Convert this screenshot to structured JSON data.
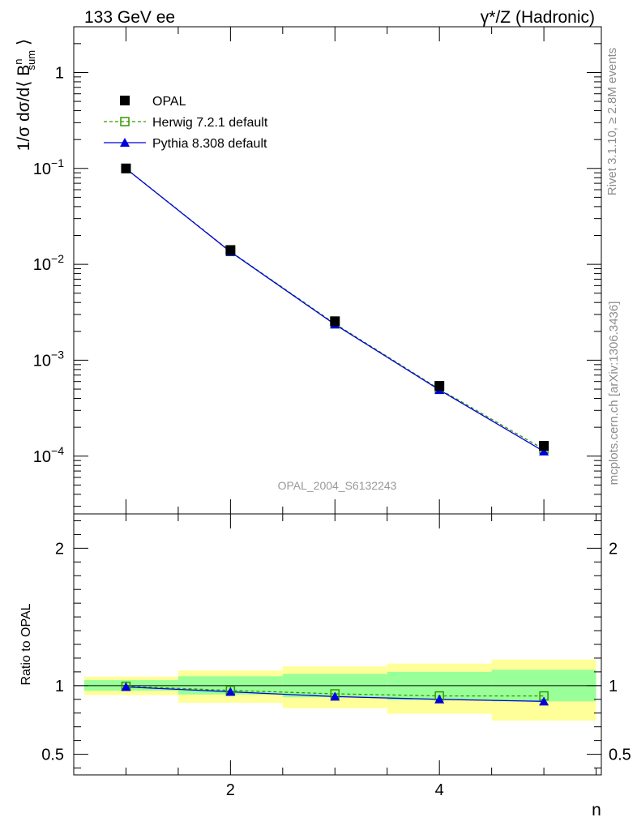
{
  "header": {
    "left_label": "133 GeV ee",
    "right_label_prefix": "γ*",
    "right_label_suffix": "/Z (Hadronic)"
  },
  "side_labels": {
    "rivet": "Rivet 3.1.10, ≥ 2.8M events",
    "mcplots": "mcplots.cern.ch [arXiv:1306.3436]"
  },
  "analysis_id": "OPAL_2004_S6132243",
  "chart_data": [
    {
      "type": "line",
      "panel": "main",
      "ylabel_main": "1/σ dσ/d⟨ B",
      "ylabel_sup": "n",
      "ylabel_sub": "sum",
      "ylabel_close": "⟩",
      "yscale": "log",
      "ylim": [
        2.5e-05,
        3
      ],
      "xlim": [
        0.5,
        5.55
      ],
      "y_tick_labels": [
        {
          "value": 1,
          "base": "1",
          "exp": ""
        },
        {
          "value": 0.1,
          "base": "10",
          "exp": "−1"
        },
        {
          "value": 0.01,
          "base": "10",
          "exp": "−2"
        },
        {
          "value": 0.001,
          "base": "10",
          "exp": "−3"
        },
        {
          "value": 0.0001,
          "base": "10",
          "exp": "−4"
        }
      ],
      "legend_position": "top-left",
      "x": [
        1,
        2,
        3,
        4,
        5
      ],
      "series": [
        {
          "name": "OPAL",
          "values": [
            0.1,
            0.0141,
            0.00255,
            0.00054,
            0.000128
          ],
          "color": "#000000",
          "marker": "square-filled"
        },
        {
          "name": "Herwig 7.2.1 default",
          "values": [
            0.0998,
            0.0136,
            0.0024,
            0.0005,
            0.000118
          ],
          "color": "#339900",
          "marker": "square-open",
          "line": "dashed"
        },
        {
          "name": "Pythia 8.308 default",
          "values": [
            0.0993,
            0.0135,
            0.00236,
            0.00049,
            0.000112
          ],
          "color": "#0000dd",
          "marker": "triangle",
          "line": "solid"
        }
      ]
    },
    {
      "type": "line",
      "panel": "ratio",
      "ylabel": "Ratio to OPAL",
      "ylim": [
        0.35,
        2.25
      ],
      "y_tick_labels": [
        "0.5",
        "1",
        "2"
      ],
      "xlabel": "n",
      "x_tick_labels": [
        "2",
        "4"
      ],
      "x": [
        1,
        2,
        3,
        4,
        5
      ],
      "bands": [
        {
          "name": "OPAL stat",
          "color": "#99ff99",
          "x_edges": [
            [
              0.6,
              1.5
            ],
            [
              1.5,
              2.5
            ],
            [
              2.5,
              3.5
            ],
            [
              3.5,
              4.5
            ],
            [
              4.5,
              5.5
            ]
          ],
          "low": [
            0.963,
            0.935,
            0.915,
            0.895,
            0.885
          ],
          "high": [
            1.04,
            1.068,
            1.085,
            1.1,
            1.115
          ]
        },
        {
          "name": "OPAL total",
          "color": "#ffff99",
          "x_edges": [
            [
              0.6,
              1.5
            ],
            [
              1.5,
              2.5
            ],
            [
              2.5,
              3.5
            ],
            [
              3.5,
              4.5
            ],
            [
              4.5,
              5.5
            ]
          ],
          "low": [
            0.93,
            0.875,
            0.835,
            0.795,
            0.745
          ],
          "high": [
            1.065,
            1.11,
            1.14,
            1.16,
            1.19
          ]
        }
      ],
      "series": [
        {
          "name": "Herwig 7.2.1 default",
          "values": [
            0.995,
            0.965,
            0.94,
            0.925,
            0.925
          ],
          "color": "#339900",
          "marker": "square-open",
          "line": "dashed"
        },
        {
          "name": "Pythia 8.308 default",
          "values": [
            0.99,
            0.955,
            0.92,
            0.9,
            0.885
          ],
          "color": "#0000dd",
          "marker": "triangle",
          "line": "solid"
        }
      ]
    }
  ]
}
